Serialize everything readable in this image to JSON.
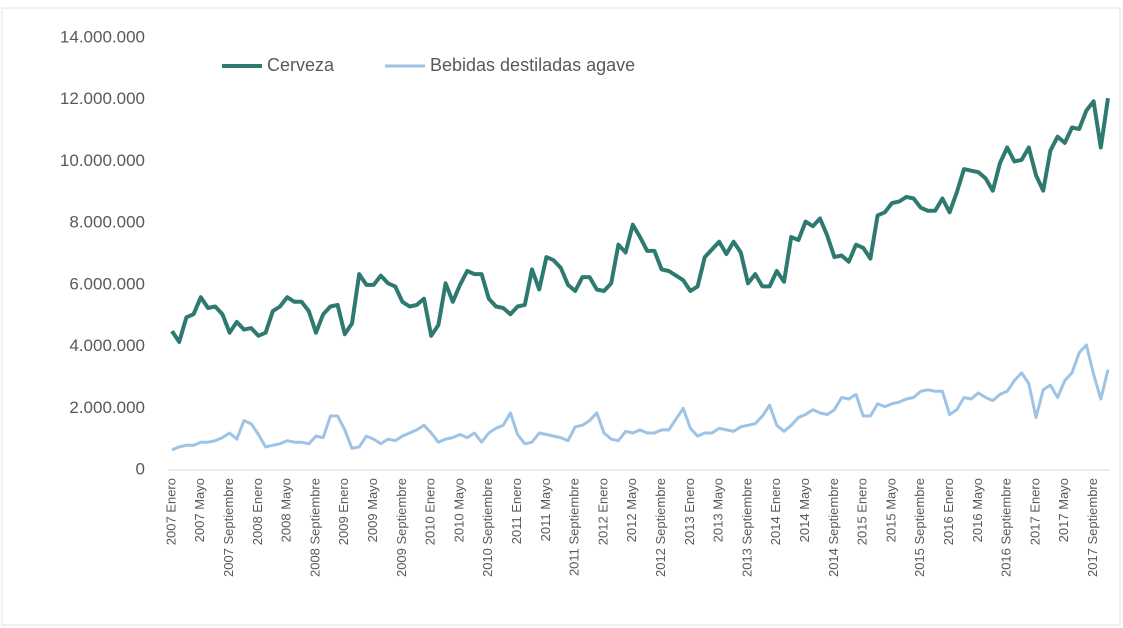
{
  "chart_data": {
    "type": "line",
    "categories": [
      "2007 Enero",
      null,
      null,
      null,
      "2007 Mayo",
      null,
      null,
      null,
      "2007 Septiembre",
      null,
      null,
      null,
      "2008 Enero",
      null,
      null,
      null,
      "2008 Mayo",
      null,
      null,
      null,
      "2008 Septiembre",
      null,
      null,
      null,
      "2009 Enero",
      null,
      null,
      null,
      "2009 Mayo",
      null,
      null,
      null,
      "2009 Septiembre",
      null,
      null,
      null,
      "2010 Enero",
      null,
      null,
      null,
      "2010 Mayo",
      null,
      null,
      null,
      "2010 Septiembre",
      null,
      null,
      null,
      "2011 Enero",
      null,
      null,
      null,
      "2011 Mayo",
      null,
      null,
      null,
      "2011 Septiembre",
      null,
      null,
      null,
      "2012 Enero",
      null,
      null,
      null,
      "2012 Mayo",
      null,
      null,
      null,
      "2012 Septiembre",
      null,
      null,
      null,
      "2013 Enero",
      null,
      null,
      null,
      "2013 Mayo",
      null,
      null,
      null,
      "2013 Septiembre",
      null,
      null,
      null,
      "2014 Enero",
      null,
      null,
      null,
      "2014 Mayo",
      null,
      null,
      null,
      "2014 Septiembre",
      null,
      null,
      null,
      "2015 Enero",
      null,
      null,
      null,
      "2015 Mayo",
      null,
      null,
      null,
      "2015 Septiembre",
      null,
      null,
      null,
      "2016 Enero",
      null,
      null,
      null,
      "2016 Mayo",
      null,
      null,
      null,
      "2016 Septiembre",
      null,
      null,
      null,
      "2017 Enero",
      null,
      null,
      null,
      "2017 Mayo",
      null,
      null,
      null,
      "2017 Septiembre",
      null,
      null
    ],
    "series": [
      {
        "name": "Cerveza",
        "color": "#2f7a70",
        "values": [
          4500000,
          4150000,
          4950000,
          5050000,
          5600000,
          5250000,
          5300000,
          5050000,
          4450000,
          4800000,
          4550000,
          4600000,
          4350000,
          4450000,
          5150000,
          5300000,
          5600000,
          5450000,
          5450000,
          5150000,
          4450000,
          5050000,
          5300000,
          5350000,
          4400000,
          4750000,
          6350000,
          6000000,
          6000000,
          6300000,
          6050000,
          5950000,
          5450000,
          5300000,
          5350000,
          5550000,
          4350000,
          4700000,
          6050000,
          5450000,
          6000000,
          6450000,
          6350000,
          6350000,
          5550000,
          5300000,
          5250000,
          5050000,
          5300000,
          5350000,
          6500000,
          5850000,
          6900000,
          6800000,
          6550000,
          6000000,
          5800000,
          6250000,
          6250000,
          5850000,
          5800000,
          6050000,
          7300000,
          7050000,
          7950000,
          7550000,
          7100000,
          7100000,
          6500000,
          6450000,
          6300000,
          6150000,
          5800000,
          5950000,
          6900000,
          7150000,
          7400000,
          7000000,
          7400000,
          7050000,
          6050000,
          6350000,
          5950000,
          5950000,
          6450000,
          6100000,
          7550000,
          7450000,
          8050000,
          7900000,
          8150000,
          7600000,
          6900000,
          6950000,
          6750000,
          7300000,
          7200000,
          6850000,
          8250000,
          8350000,
          8650000,
          8700000,
          8850000,
          8800000,
          8500000,
          8400000,
          8400000,
          8800000,
          8350000,
          9000000,
          9750000,
          9700000,
          9650000,
          9450000,
          9050000,
          9950000,
          10450000,
          10000000,
          10050000,
          10450000,
          9550000,
          9050000,
          10350000,
          10800000,
          10600000,
          11100000,
          11050000,
          11650000,
          11950000,
          10450000,
          12050000
        ]
      },
      {
        "name": "Bebidas destiladas agave",
        "color": "#9dc3e6",
        "values": [
          650000,
          750000,
          800000,
          800000,
          900000,
          900000,
          950000,
          1050000,
          1200000,
          1000000,
          1600000,
          1500000,
          1150000,
          750000,
          800000,
          850000,
          950000,
          900000,
          900000,
          850000,
          1100000,
          1050000,
          1750000,
          1750000,
          1300000,
          700000,
          750000,
          1100000,
          1000000,
          850000,
          1000000,
          950000,
          1100000,
          1200000,
          1300000,
          1450000,
          1200000,
          900000,
          1000000,
          1050000,
          1150000,
          1050000,
          1200000,
          900000,
          1200000,
          1350000,
          1450000,
          1850000,
          1150000,
          850000,
          900000,
          1200000,
          1150000,
          1100000,
          1050000,
          950000,
          1400000,
          1450000,
          1600000,
          1850000,
          1200000,
          1000000,
          950000,
          1250000,
          1200000,
          1300000,
          1200000,
          1200000,
          1300000,
          1300000,
          1650000,
          2000000,
          1350000,
          1100000,
          1200000,
          1200000,
          1350000,
          1300000,
          1250000,
          1400000,
          1450000,
          1500000,
          1750000,
          2100000,
          1450000,
          1250000,
          1450000,
          1700000,
          1800000,
          1950000,
          1850000,
          1800000,
          1950000,
          2350000,
          2300000,
          2450000,
          1750000,
          1750000,
          2150000,
          2050000,
          2150000,
          2200000,
          2300000,
          2350000,
          2550000,
          2600000,
          2550000,
          2550000,
          1800000,
          1950000,
          2350000,
          2300000,
          2500000,
          2350000,
          2250000,
          2450000,
          2550000,
          2900000,
          3150000,
          2800000,
          1700000,
          2600000,
          2750000,
          2350000,
          2900000,
          3150000,
          3800000,
          4050000,
          3100000,
          2300000,
          3250000
        ]
      }
    ],
    "ylim": [
      0,
      14000000
    ],
    "yticks": [
      0,
      {
        "value": 2000000,
        "label": "2.000.000"
      },
      {
        "value": 4000000,
        "label": "4.000.000"
      },
      {
        "value": 6000000,
        "label": "6.000.000"
      },
      {
        "value": 8000000,
        "label": "8.000.000"
      },
      {
        "value": 10000000,
        "label": "10.000.000"
      },
      {
        "value": 12000000,
        "label": "12.000.000"
      },
      {
        "value": 14000000,
        "label": "14.000.000"
      }
    ],
    "grid": false,
    "legend": "top"
  }
}
